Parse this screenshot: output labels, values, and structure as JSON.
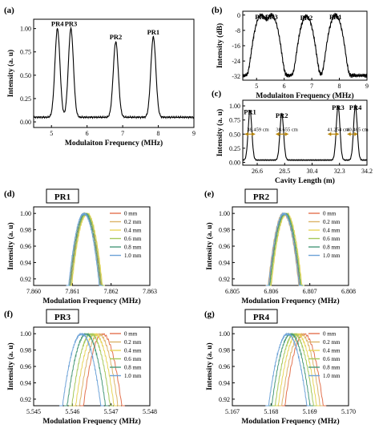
{
  "colors": {
    "curve": "#000000",
    "arrow": "#b8860b",
    "legend": [
      "#e3724f",
      "#dcb46a",
      "#e8d45a",
      "#a6c85a",
      "#4a9a7a",
      "#6ea3d8"
    ]
  },
  "chart_data": [
    {
      "id": "a",
      "type": "line",
      "panel_label": "(a)",
      "xlabel": "Modulaiton Frequency (MHz)",
      "ylabel": "Intensity (a. u)",
      "xlim": [
        4.5,
        9
      ],
      "ylim": [
        -0.06,
        1.1
      ],
      "xticks": [
        "5",
        "6",
        "7",
        "8",
        "9"
      ],
      "yticks": [
        "0.00",
        "0.25",
        "0.50",
        "0.75",
        "1.00"
      ],
      "peaks": [
        {
          "label": "PR4",
          "x": 5.168,
          "y": 1.0
        },
        {
          "label": "PR3",
          "x": 5.546,
          "y": 1.0
        },
        {
          "label": "PR2",
          "x": 6.806,
          "y": 0.86
        },
        {
          "label": "PR1",
          "x": 7.861,
          "y": 0.91
        }
      ],
      "baseline": 0.05
    },
    {
      "id": "b",
      "type": "line",
      "panel_label": "(b)",
      "xlabel": "Modulaiton Frequency (MHz)",
      "ylabel": "Intensity (dB)",
      "xlim": [
        4.5,
        9
      ],
      "ylim": [
        -34,
        2
      ],
      "xticks": [
        "5",
        "6",
        "7",
        "8",
        "9"
      ],
      "yticks": [
        "0",
        "-8",
        "-16",
        "-24",
        "-32"
      ],
      "peaks": [
        {
          "label": "PR4",
          "x": 5.168,
          "y": 0
        },
        {
          "label": "PR3",
          "x": 5.546,
          "y": 0
        },
        {
          "label": "PR2",
          "x": 6.806,
          "y": -0.5
        },
        {
          "label": "PR1",
          "x": 7.861,
          "y": 0
        }
      ]
    },
    {
      "id": "c",
      "type": "line",
      "panel_label": "(c)",
      "xlabel": "Cavity Length (m)",
      "ylabel": "Intensity (a. u)",
      "xlim": [
        25.6,
        34.2
      ],
      "ylim": [
        -0.05,
        1.1
      ],
      "xticks": [
        "26.6",
        "28.5",
        "30.4",
        "32.3",
        "34.2"
      ],
      "yticks": [
        "0.00",
        "0.25",
        "0.50",
        "0.75",
        "1.00"
      ],
      "peaks": [
        {
          "label": "PR1",
          "x": 26.1,
          "y": 0.92
        },
        {
          "label": "PR2",
          "x": 28.3,
          "y": 0.86
        },
        {
          "label": "PR3",
          "x": 32.2,
          "y": 1.0
        },
        {
          "label": "PR4",
          "x": 33.4,
          "y": 1.0
        }
      ],
      "annotations": [
        "38.459 cm",
        "38.655 cm",
        "41.254 cm",
        "40.465 cm"
      ]
    },
    {
      "id": "d",
      "type": "line",
      "panel_label": "(d)",
      "title": "PR1",
      "xlabel": "Modulation Frequency (MHz)",
      "ylabel": "Intensity (a. u)",
      "xlim": [
        7.86,
        7.863
      ],
      "ylim": [
        0.912,
        1.008
      ],
      "xticks": [
        "7.860",
        "7.861",
        "7.862",
        "7.863"
      ],
      "yticks": [
        "0.92",
        "0.94",
        "0.96",
        "0.98",
        "1.00"
      ],
      "centers": [
        7.86135,
        7.86132,
        7.86138,
        7.86136,
        7.86133,
        7.8613
      ],
      "halfwidth": 0.0004
    },
    {
      "id": "e",
      "type": "line",
      "panel_label": "(e)",
      "title": "PR2",
      "xlabel": "Modulation Frequency (MHz)",
      "ylabel": "Intensity (a. u)",
      "xlim": [
        6.805,
        6.808
      ],
      "ylim": [
        0.912,
        1.008
      ],
      "xticks": [
        "6.805",
        "6.806",
        "6.807",
        "6.808"
      ],
      "yticks": [
        "0.92",
        "0.94",
        "0.96",
        "0.98",
        "1.00"
      ],
      "centers": [
        6.80635,
        6.80632,
        6.8064,
        6.80638,
        6.80636,
        6.80633
      ],
      "halfwidth": 0.0004
    },
    {
      "id": "f",
      "type": "line",
      "panel_label": "(f)",
      "title": "PR3",
      "xlabel": "Modulation Frequency (MHz)",
      "ylabel": "Intensity (a. u)",
      "xlim": [
        5.545,
        5.548
      ],
      "ylim": [
        0.912,
        1.008
      ],
      "xticks": [
        "5.545",
        "5.546",
        "5.547",
        "5.548"
      ],
      "yticks": [
        "0.92",
        "0.94",
        "0.96",
        "0.98",
        "1.00"
      ],
      "centers": [
        5.54678,
        5.54668,
        5.54658,
        5.54648,
        5.54636,
        5.54624
      ],
      "halfwidth": 0.0005
    },
    {
      "id": "g",
      "type": "line",
      "panel_label": "(g)",
      "title": "PR4",
      "xlabel": "Modulation Frequency (MHz)",
      "ylabel": "Intensity (a. u)",
      "xlim": [
        5.167,
        5.17
      ],
      "ylim": [
        0.912,
        1.008
      ],
      "xticks": [
        "5.167",
        "5.168",
        "5.169",
        "5.170"
      ],
      "yticks": [
        "0.92",
        "0.94",
        "0.96",
        "0.98",
        "1.00"
      ],
      "centers": [
        5.16885,
        5.16877,
        5.16868,
        5.1686,
        5.16851,
        5.16843
      ],
      "halfwidth": 0.0005
    }
  ],
  "legend_items": [
    "0 mm",
    "0.2 mm",
    "0.4 mm",
    "0.6 mm",
    "0.8 mm",
    "1.0 mm"
  ]
}
